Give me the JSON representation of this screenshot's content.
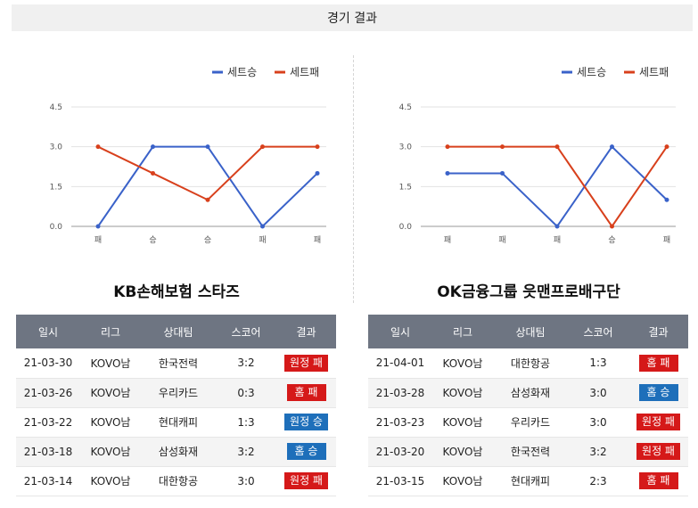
{
  "header": {
    "title": "경기 결과"
  },
  "legend": {
    "win_label": "세트승",
    "loss_label": "세트패",
    "win_color": "#3a62c9",
    "loss_color": "#d8401c"
  },
  "teams": [
    {
      "name": "KB손해보험 스타즈",
      "chart_data": {
        "type": "line",
        "categories": [
          "패",
          "승",
          "승",
          "패",
          "패"
        ],
        "series": [
          {
            "name": "세트승",
            "values": [
              0,
              3,
              3,
              0,
              2
            ]
          },
          {
            "name": "세트패",
            "values": [
              3,
              2,
              1,
              3,
              3
            ]
          }
        ],
        "yticks": [
          "4.5",
          "3.0",
          "1.5",
          "0.0"
        ],
        "ylim": [
          0,
          4.5
        ],
        "legend_position": "top-right",
        "grid": true
      },
      "table": {
        "headers": [
          "일시",
          "리그",
          "상대팀",
          "스코어",
          "결과"
        ],
        "rows": [
          {
            "date": "21-03-30",
            "league": "KOVO남",
            "opponent": "한국전력",
            "score": "3:2",
            "result": "원정 패",
            "kind": "loss"
          },
          {
            "date": "21-03-26",
            "league": "KOVO남",
            "opponent": "우리카드",
            "score": "0:3",
            "result": "홈 패",
            "kind": "loss"
          },
          {
            "date": "21-03-22",
            "league": "KOVO남",
            "opponent": "현대캐피",
            "score": "1:3",
            "result": "원정 승",
            "kind": "win"
          },
          {
            "date": "21-03-18",
            "league": "KOVO남",
            "opponent": "삼성화재",
            "score": "3:2",
            "result": "홈 승",
            "kind": "win"
          },
          {
            "date": "21-03-14",
            "league": "KOVO남",
            "opponent": "대한항공",
            "score": "3:0",
            "result": "원정 패",
            "kind": "loss"
          }
        ]
      }
    },
    {
      "name": "OK금융그룹 읏맨프로배구단",
      "chart_data": {
        "type": "line",
        "categories": [
          "패",
          "패",
          "패",
          "승",
          "패"
        ],
        "series": [
          {
            "name": "세트승",
            "values": [
              2,
              2,
              0,
              3,
              1
            ]
          },
          {
            "name": "세트패",
            "values": [
              3,
              3,
              3,
              0,
              3
            ]
          }
        ],
        "yticks": [
          "4.5",
          "3.0",
          "1.5",
          "0.0"
        ],
        "ylim": [
          0,
          4.5
        ],
        "legend_position": "top-right",
        "grid": true
      },
      "table": {
        "headers": [
          "일시",
          "리그",
          "상대팀",
          "스코어",
          "결과"
        ],
        "rows": [
          {
            "date": "21-04-01",
            "league": "KOVO남",
            "opponent": "대한항공",
            "score": "1:3",
            "result": "홈 패",
            "kind": "loss"
          },
          {
            "date": "21-03-28",
            "league": "KOVO남",
            "opponent": "삼성화재",
            "score": "3:0",
            "result": "홈 승",
            "kind": "win"
          },
          {
            "date": "21-03-23",
            "league": "KOVO남",
            "opponent": "우리카드",
            "score": "3:0",
            "result": "원정 패",
            "kind": "loss"
          },
          {
            "date": "21-03-20",
            "league": "KOVO남",
            "opponent": "한국전력",
            "score": "3:2",
            "result": "원정 패",
            "kind": "loss"
          },
          {
            "date": "21-03-15",
            "league": "KOVO남",
            "opponent": "현대캐피",
            "score": "2:3",
            "result": "홈 패",
            "kind": "loss"
          }
        ]
      }
    }
  ]
}
